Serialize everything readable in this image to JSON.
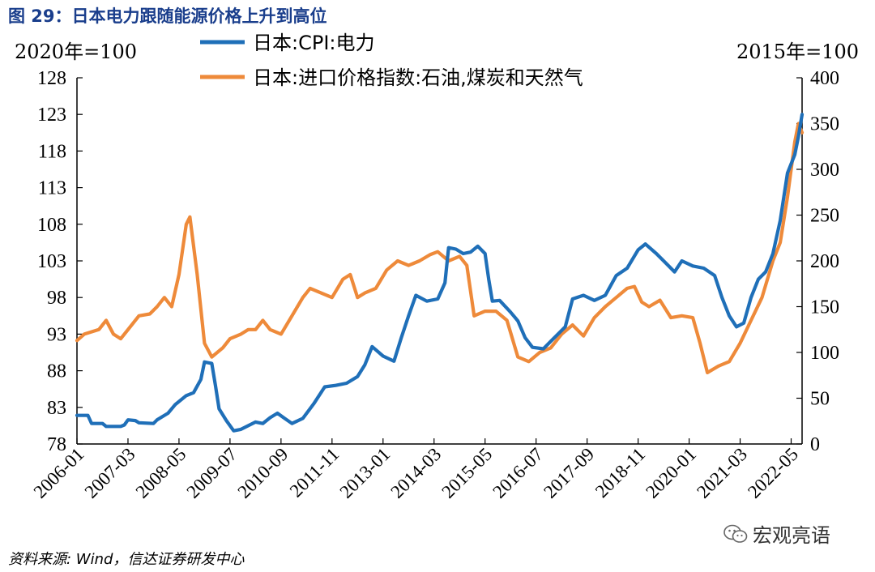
{
  "figure": {
    "title": "图 29：日本电力跟随能源价格上升到高位",
    "source": "资料来源: Wind，信达证券研发中心",
    "watermark": "宏观亮语"
  },
  "chart_data": {
    "type": "line",
    "left_unit": "2020年=100",
    "right_unit": "2015年=100",
    "left_axis": {
      "min": 78,
      "max": 128,
      "ticks": [
        78,
        83,
        88,
        93,
        98,
        103,
        108,
        113,
        118,
        123,
        128
      ]
    },
    "right_axis": {
      "min": 0,
      "max": 400,
      "ticks": [
        0,
        50,
        100,
        150,
        200,
        250,
        300,
        350,
        400
      ]
    },
    "x_range": [
      "2006-01",
      "2022-08"
    ],
    "x_ticks": [
      "2006-01",
      "2007-03",
      "2008-05",
      "2009-07",
      "2010-09",
      "2011-11",
      "2013-01",
      "2014-03",
      "2015-05",
      "2016-07",
      "2017-09",
      "2018-11",
      "2020-01",
      "2021-03",
      "2022-05"
    ],
    "legend_position": "top",
    "grid": false,
    "series": [
      {
        "name": "日本:CPI:电力",
        "axis": "left",
        "color": "#1f6fb8",
        "points": [
          [
            "2006-01",
            81.9
          ],
          [
            "2006-04",
            81.9
          ],
          [
            "2006-05",
            80.8
          ],
          [
            "2006-08",
            80.8
          ],
          [
            "2006-09",
            80.4
          ],
          [
            "2007-01",
            80.4
          ],
          [
            "2007-02",
            80.6
          ],
          [
            "2007-03",
            81.3
          ],
          [
            "2007-05",
            81.2
          ],
          [
            "2007-06",
            80.9
          ],
          [
            "2007-10",
            80.8
          ],
          [
            "2007-11",
            81.3
          ],
          [
            "2008-02",
            82.2
          ],
          [
            "2008-04",
            83.4
          ],
          [
            "2008-07",
            84.6
          ],
          [
            "2008-09",
            85.0
          ],
          [
            "2008-11",
            86.8
          ],
          [
            "2008-12",
            89.2
          ],
          [
            "2009-02",
            89.0
          ],
          [
            "2009-03",
            86.0
          ],
          [
            "2009-04",
            82.8
          ],
          [
            "2009-06",
            81.2
          ],
          [
            "2009-08",
            79.8
          ],
          [
            "2009-10",
            80.0
          ],
          [
            "2009-12",
            80.5
          ],
          [
            "2010-02",
            81.0
          ],
          [
            "2010-04",
            80.8
          ],
          [
            "2010-06",
            81.6
          ],
          [
            "2010-08",
            82.2
          ],
          [
            "2010-10",
            81.5
          ],
          [
            "2010-12",
            80.8
          ],
          [
            "2011-03",
            81.5
          ],
          [
            "2011-06",
            83.5
          ],
          [
            "2011-09",
            85.8
          ],
          [
            "2011-12",
            86.0
          ],
          [
            "2012-03",
            86.3
          ],
          [
            "2012-06",
            87.2
          ],
          [
            "2012-08",
            88.8
          ],
          [
            "2012-10",
            91.3
          ],
          [
            "2013-01",
            90.0
          ],
          [
            "2013-04",
            89.3
          ],
          [
            "2013-06",
            92.5
          ],
          [
            "2013-08",
            95.5
          ],
          [
            "2013-10",
            98.3
          ],
          [
            "2014-01",
            97.5
          ],
          [
            "2014-04",
            97.8
          ],
          [
            "2014-06",
            100.0
          ],
          [
            "2014-07",
            104.8
          ],
          [
            "2014-09",
            104.6
          ],
          [
            "2014-11",
            104.0
          ],
          [
            "2015-01",
            104.2
          ],
          [
            "2015-03",
            105.0
          ],
          [
            "2015-05",
            104.0
          ],
          [
            "2015-06",
            100.5
          ],
          [
            "2015-07",
            97.5
          ],
          [
            "2015-09",
            97.6
          ],
          [
            "2015-12",
            96.0
          ],
          [
            "2016-02",
            94.8
          ],
          [
            "2016-04",
            92.5
          ],
          [
            "2016-06",
            91.2
          ],
          [
            "2016-09",
            91.0
          ],
          [
            "2016-11",
            92.0
          ],
          [
            "2017-03",
            94.0
          ],
          [
            "2017-05",
            97.8
          ],
          [
            "2017-08",
            98.3
          ],
          [
            "2017-11",
            97.6
          ],
          [
            "2018-02",
            98.3
          ],
          [
            "2018-05",
            101.0
          ],
          [
            "2018-08",
            102.0
          ],
          [
            "2018-11",
            104.5
          ],
          [
            "2019-01",
            105.3
          ],
          [
            "2019-04",
            104.0
          ],
          [
            "2019-07",
            102.5
          ],
          [
            "2019-09",
            101.5
          ],
          [
            "2019-11",
            103.0
          ],
          [
            "2020-02",
            102.3
          ],
          [
            "2020-05",
            102.0
          ],
          [
            "2020-08",
            101.0
          ],
          [
            "2020-10",
            98.0
          ],
          [
            "2020-12",
            95.5
          ],
          [
            "2021-02",
            94.0
          ],
          [
            "2021-04",
            94.5
          ],
          [
            "2021-06",
            98.0
          ],
          [
            "2021-08",
            100.5
          ],
          [
            "2021-10",
            101.5
          ],
          [
            "2021-12",
            104.0
          ],
          [
            "2022-02",
            108.5
          ],
          [
            "2022-04",
            115.0
          ],
          [
            "2022-06",
            117.5
          ],
          [
            "2022-07",
            120.0
          ],
          [
            "2022-08",
            123.0
          ]
        ]
      },
      {
        "name": "日本:进口价格指数:石油,煤炭和天然气",
        "axis": "right",
        "color": "#ee8a3a",
        "points": [
          [
            "2006-01",
            113
          ],
          [
            "2006-03",
            120
          ],
          [
            "2006-07",
            125
          ],
          [
            "2006-09",
            135
          ],
          [
            "2006-11",
            120
          ],
          [
            "2007-01",
            115
          ],
          [
            "2007-03",
            125
          ],
          [
            "2007-06",
            140
          ],
          [
            "2007-09",
            142
          ],
          [
            "2007-11",
            150
          ],
          [
            "2008-01",
            160
          ],
          [
            "2008-03",
            150
          ],
          [
            "2008-05",
            185
          ],
          [
            "2008-07",
            240
          ],
          [
            "2008-08",
            248
          ],
          [
            "2008-10",
            185
          ],
          [
            "2008-12",
            110
          ],
          [
            "2009-02",
            95
          ],
          [
            "2009-05",
            105
          ],
          [
            "2009-07",
            115
          ],
          [
            "2009-10",
            120
          ],
          [
            "2009-12",
            125
          ],
          [
            "2010-02",
            125
          ],
          [
            "2010-04",
            135
          ],
          [
            "2010-06",
            125
          ],
          [
            "2010-09",
            120
          ],
          [
            "2010-12",
            140
          ],
          [
            "2011-03",
            160
          ],
          [
            "2011-05",
            170
          ],
          [
            "2011-08",
            165
          ],
          [
            "2011-11",
            160
          ],
          [
            "2012-02",
            180
          ],
          [
            "2012-04",
            185
          ],
          [
            "2012-06",
            160
          ],
          [
            "2012-08",
            165
          ],
          [
            "2012-11",
            170
          ],
          [
            "2013-02",
            190
          ],
          [
            "2013-05",
            200
          ],
          [
            "2013-08",
            195
          ],
          [
            "2013-11",
            200
          ],
          [
            "2014-02",
            207
          ],
          [
            "2014-04",
            210
          ],
          [
            "2014-07",
            200
          ],
          [
            "2014-10",
            205
          ],
          [
            "2014-12",
            195
          ],
          [
            "2015-02",
            140
          ],
          [
            "2015-05",
            145
          ],
          [
            "2015-08",
            145
          ],
          [
            "2015-11",
            135
          ],
          [
            "2016-02",
            95
          ],
          [
            "2016-05",
            90
          ],
          [
            "2016-08",
            100
          ],
          [
            "2016-11",
            105
          ],
          [
            "2017-02",
            120
          ],
          [
            "2017-05",
            130
          ],
          [
            "2017-08",
            118
          ],
          [
            "2017-11",
            138
          ],
          [
            "2018-02",
            150
          ],
          [
            "2018-05",
            160
          ],
          [
            "2018-08",
            170
          ],
          [
            "2018-10",
            172
          ],
          [
            "2018-12",
            155
          ],
          [
            "2019-02",
            150
          ],
          [
            "2019-05",
            157
          ],
          [
            "2019-08",
            138
          ],
          [
            "2019-11",
            140
          ],
          [
            "2020-02",
            138
          ],
          [
            "2020-04",
            110
          ],
          [
            "2020-06",
            78
          ],
          [
            "2020-09",
            85
          ],
          [
            "2020-12",
            90
          ],
          [
            "2021-03",
            110
          ],
          [
            "2021-06",
            135
          ],
          [
            "2021-09",
            160
          ],
          [
            "2021-12",
            200
          ],
          [
            "2022-02",
            220
          ],
          [
            "2022-04",
            270
          ],
          [
            "2022-06",
            330
          ],
          [
            "2022-07",
            350
          ],
          [
            "2022-08",
            340
          ]
        ]
      }
    ]
  }
}
